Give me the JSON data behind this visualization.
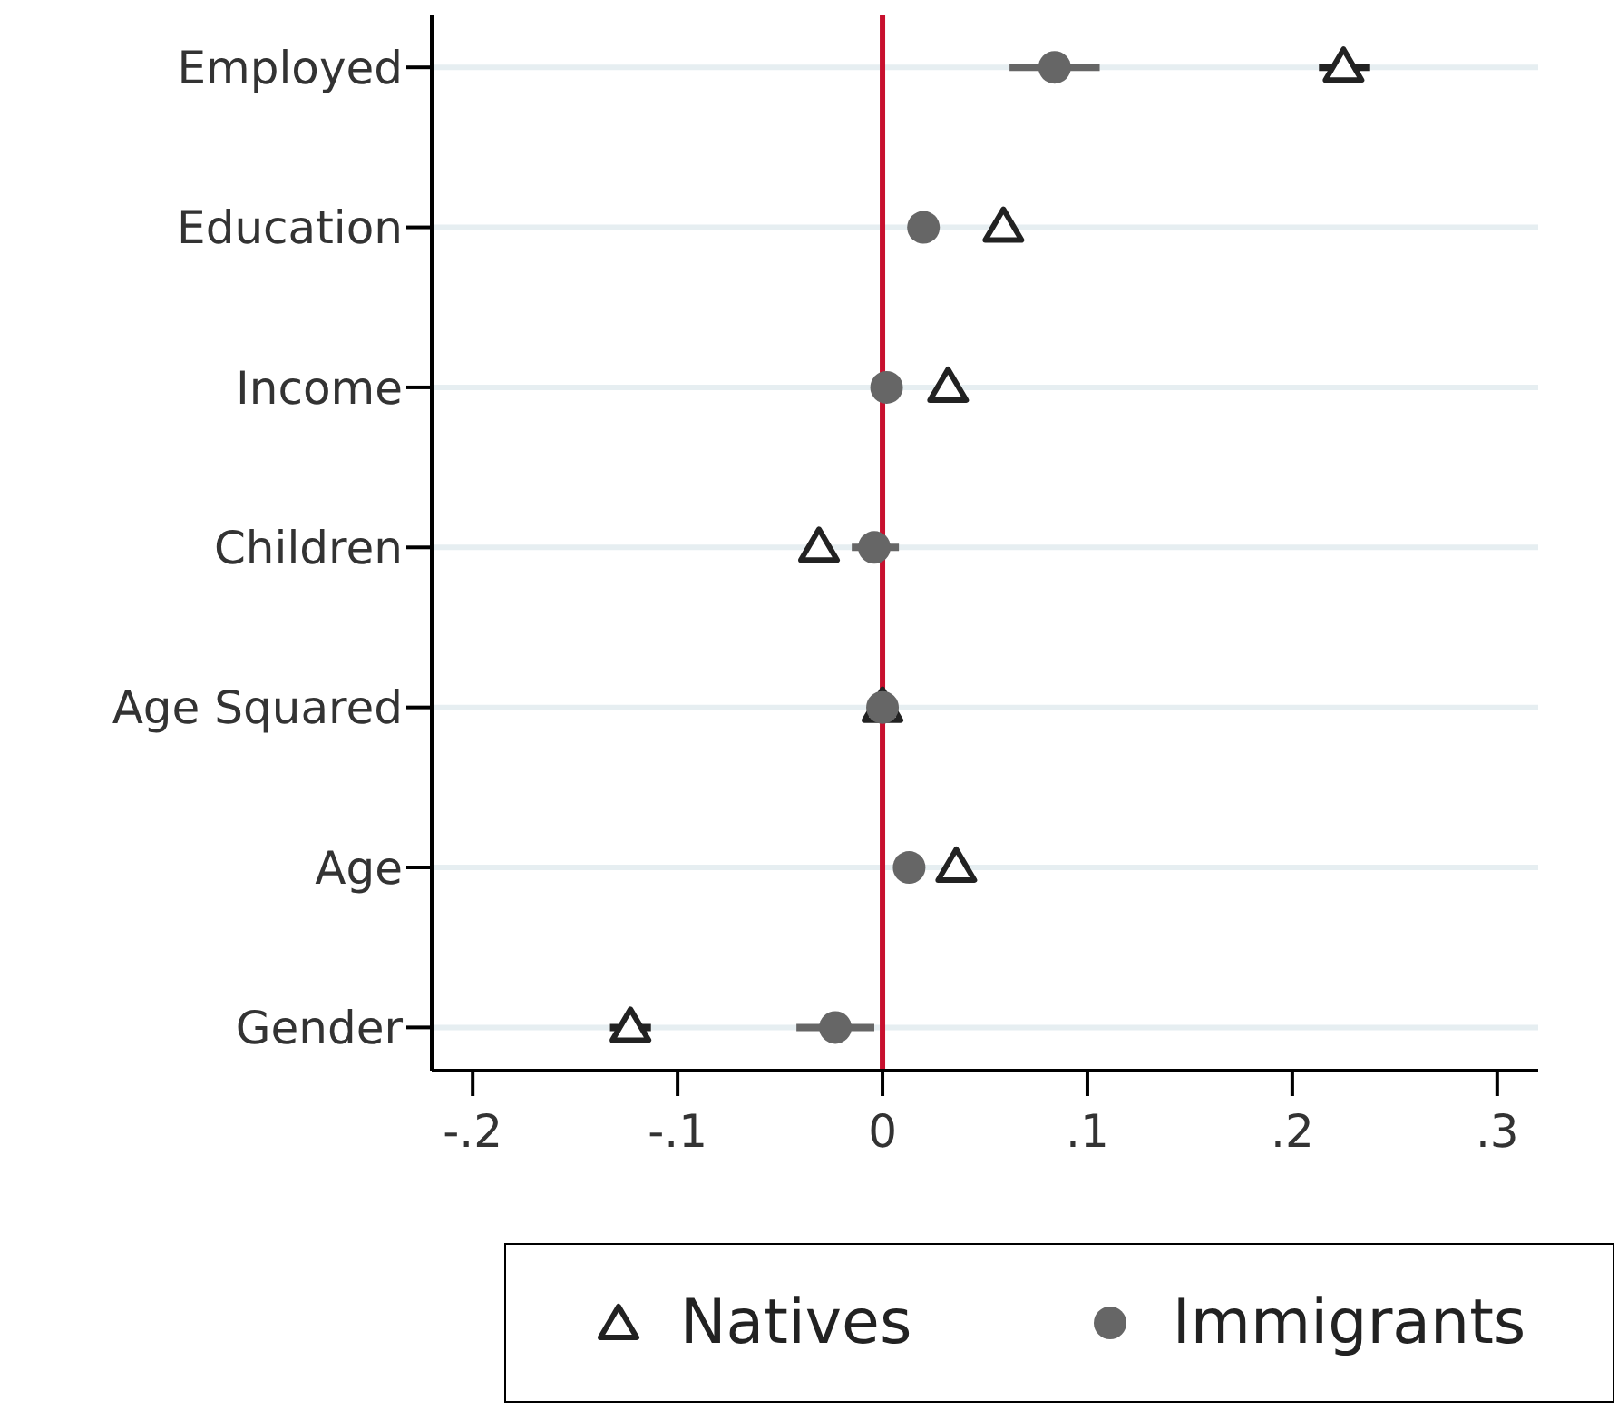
{
  "chart_data": {
    "type": "scatter",
    "orientation": "horizontal",
    "categories": [
      "Employed",
      "Education",
      "Income",
      "Children",
      "Age Squared",
      "Age",
      "Gender"
    ],
    "series": [
      {
        "name": "Natives",
        "color": "#222222",
        "marker": "triangle",
        "values": [
          0.225,
          0.059,
          0.032,
          -0.031,
          0,
          0.036,
          -0.123
        ],
        "errors": [
          [
            0.213,
            0.238
          ],
          null,
          null,
          null,
          null,
          null,
          [
            -0.133,
            -0.113
          ]
        ]
      },
      {
        "name": "Immigrants",
        "color": "#666666",
        "marker": "circle",
        "values": [
          0.084,
          0.02,
          0.002,
          -0.004,
          0,
          0.013,
          -0.023
        ],
        "errors": [
          [
            0.062,
            0.106
          ],
          null,
          null,
          [
            -0.015,
            0.008
          ],
          null,
          null,
          [
            -0.042,
            -0.004
          ]
        ]
      }
    ],
    "xlim": [
      -0.22,
      0.32
    ],
    "xticks": [
      {
        "value": -0.2,
        "label": "-.2"
      },
      {
        "value": -0.1,
        "label": "-.1"
      },
      0,
      {
        "value": 0.1,
        "label": ".1"
      },
      {
        "value": 0.2,
        "label": ".2"
      },
      {
        "value": 0.3,
        "label": ".3"
      }
    ],
    "ref_lines": [
      {
        "axis": "x",
        "value": 0,
        "color": "#c8102e"
      }
    ],
    "grid": "y",
    "legend": "bottom"
  }
}
